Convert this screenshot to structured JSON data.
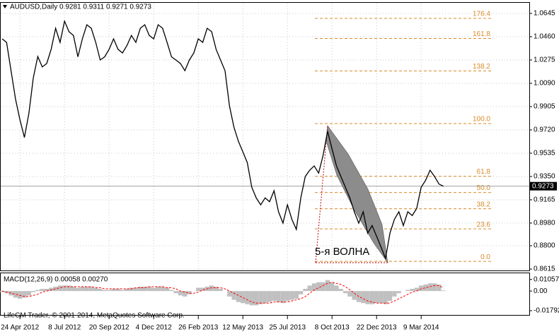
{
  "chart_data": [
    {
      "type": "line",
      "title": "AUDUSD,Daily  0.9281 0.9311 0.9271 0.9273",
      "categories": [
        null,
        null,
        null,
        null,
        "24 Apr 2012",
        null,
        null,
        null,
        null,
        null,
        null,
        null,
        null,
        null,
        "8 Jul 2012",
        null,
        null,
        null,
        null,
        null,
        null,
        null,
        null,
        null,
        "20 Sep 2012",
        null,
        null,
        null,
        null,
        null,
        null,
        null,
        null,
        null,
        "4 Dec 2012",
        null,
        null,
        null,
        null,
        null,
        null,
        null,
        null,
        null,
        "26 Feb 2013",
        null,
        null,
        null,
        null,
        null,
        null,
        null,
        null,
        null,
        "12 May 2013",
        null,
        null,
        null,
        null,
        null,
        null,
        null,
        null,
        null,
        "25 Jul 2013",
        null,
        null,
        null,
        null,
        null,
        null,
        null,
        null,
        null,
        "8 Oct 2013",
        null,
        null,
        null,
        null,
        null,
        null,
        null,
        null,
        null,
        "22 Dec 2013",
        null,
        null,
        null,
        null,
        null,
        null,
        null,
        null,
        null,
        "9 Mar 2014",
        null,
        null,
        null,
        null,
        null
      ],
      "series": [
        {
          "color": "#000000",
          "values": [
            1.0443,
            1.0415,
            1.019,
            0.9966,
            0.98,
            0.966,
            0.985,
            1.0135,
            1.0303,
            1.022,
            1.0247,
            1.036,
            1.0527,
            1.0415,
            1.0583,
            1.05,
            1.047,
            1.03,
            1.0443,
            1.0555,
            1.0527,
            1.0415,
            1.0275,
            1.03,
            1.036,
            1.0443,
            1.036,
            1.0331,
            1.039,
            1.047,
            1.0415,
            1.0527,
            1.0555,
            1.047,
            1.0443,
            1.0555,
            1.0527,
            1.0415,
            1.03,
            1.0275,
            1.0247,
            1.019,
            1.0275,
            1.0331,
            1.0443,
            1.0415,
            1.0527,
            1.05,
            1.036,
            1.0275,
            1.019,
            0.991,
            0.9742,
            0.963,
            0.9546,
            0.946,
            0.9265,
            0.918,
            0.9125,
            0.918,
            0.915,
            0.9237,
            0.907,
            0.898,
            0.9125,
            0.901,
            0.893,
            0.918,
            0.935,
            0.94,
            0.9434,
            0.9377,
            0.9518,
            0.971,
            0.957,
            0.9434,
            0.935,
            0.9265,
            0.918,
            0.907,
            0.898,
            0.907,
            0.89,
            0.896,
            0.8876,
            0.879,
            0.87,
            0.89,
            0.901,
            0.907,
            0.896,
            0.907,
            0.904,
            0.9097,
            0.9265,
            0.932,
            0.94,
            0.935,
            0.929,
            0.9273
          ]
        }
      ],
      "ylim": [
        0.8604,
        1.0729
      ],
      "yticks": [
        1.0645,
        {
          "value": 1.046,
          "label": "1.0460"
        },
        1.0275,
        {
          "value": 1.009,
          "label": "1.0090"
        },
        0.9905,
        {
          "value": 0.972,
          "label": "0.9720"
        },
        0.9535,
        {
          "value": 0.935,
          "label": "0.9350"
        },
        0.9165,
        {
          "value": 0.898,
          "label": "0.8980"
        },
        {
          "value": 0.88,
          "label": "0.8800"
        },
        0.8615
      ],
      "grid": true,
      "current_price": 0.9273,
      "fibonacci": {
        "high": 0.977,
        "low": 0.8676,
        "color": "#d98b2b",
        "levels": [
          176.4,
          161.8,
          138.2,
          {
            "value": 100,
            "label": "100.0"
          },
          61.8,
          {
            "value": 50,
            "label": "50.0"
          },
          38.2,
          23.6,
          {
            "value": 0,
            "label": "0.0"
          }
        ]
      },
      "annotation": "5-я ВОЛНА",
      "footer": "LifeCM Trader, © 2001-2014, MetaQuotes Software Corp."
    },
    {
      "type": "macd",
      "title": "MACD(12,26,9) 0.00058 0.00270",
      "histogram": {
        "color": "#c0c0c0",
        "values": [
          -0.001,
          -0.002,
          -0.004,
          -0.006,
          -0.007,
          -0.006,
          -0.004,
          -0.001,
          0.001,
          0.002,
          0.002,
          0.003,
          0.004,
          0.005,
          0.005,
          0.005,
          0.004,
          0.003,
          0.004,
          0.004,
          0.004,
          0.003,
          0.002,
          0.001,
          0.001,
          0.002,
          0.002,
          0.001,
          0.002,
          0.003,
          0.003,
          0.004,
          0.004,
          0.004,
          0.003,
          0.004,
          0.004,
          0.003,
          0.001,
          -0.002,
          -0.004,
          -0.005,
          -0.003,
          0,
          0.003,
          0.003,
          0.004,
          0.005,
          0.004,
          0.002,
          0,
          -0.005,
          -0.008,
          -0.01,
          -0.011,
          -0.012,
          -0.013,
          -0.013,
          -0.012,
          -0.011,
          -0.01,
          -0.009,
          -0.01,
          -0.011,
          -0.009,
          -0.008,
          -0.007,
          -0.003,
          0.002,
          0.005,
          0.007,
          0.008,
          0.008,
          0.01,
          0.008,
          0.005,
          0.002,
          -0.002,
          -0.005,
          -0.008,
          -0.01,
          -0.011,
          -0.012,
          -0.012,
          -0.011,
          -0.011,
          -0.012,
          -0.009,
          -0.005,
          -0.002,
          0,
          0.001,
          0.002,
          0.003,
          0.005,
          0.006,
          0.007,
          0.007,
          0.006,
          0.00058
        ]
      },
      "signal": {
        "color": "#ff0000",
        "values": [
          0,
          -0.001,
          -0.002,
          -0.003,
          -0.004,
          -0.005,
          -0.005,
          -0.004,
          -0.003,
          -0.001,
          0,
          0.001,
          0.002,
          0.003,
          0.004,
          0.004,
          0.004,
          0.004,
          0.004,
          0.004,
          0.004,
          0.003,
          0.003,
          0.002,
          0.002,
          0.002,
          0.002,
          0.002,
          0.002,
          0.002,
          0.003,
          0.003,
          0.003,
          0.004,
          0.004,
          0.004,
          0.004,
          0.003,
          0.003,
          0.002,
          0,
          -0.001,
          -0.002,
          -0.002,
          -0.001,
          0.001,
          0.002,
          0.003,
          0.003,
          0.003,
          0.002,
          0,
          -0.002,
          -0.004,
          -0.006,
          -0.008,
          -0.01,
          -0.011,
          -0.011,
          -0.011,
          -0.011,
          -0.01,
          -0.01,
          -0.01,
          -0.01,
          -0.009,
          -0.008,
          -0.007,
          -0.005,
          -0.002,
          0.001,
          0.003,
          0.005,
          0.007,
          0.008,
          0.007,
          0.006,
          0.004,
          0.001,
          -0.002,
          -0.005,
          -0.007,
          -0.009,
          -0.01,
          -0.011,
          -0.011,
          -0.011,
          -0.011,
          -0.009,
          -0.007,
          -0.005,
          -0.003,
          -0.001,
          0,
          0.002,
          0.003,
          0.004,
          0.005,
          0.005,
          0.0027
        ]
      },
      "ylim": [
        -0.0218,
        0.0162
      ],
      "yticks": [
        0.01057,
        {
          "value": 0,
          "label": "0.00"
        },
        -0.01792
      ]
    }
  ]
}
